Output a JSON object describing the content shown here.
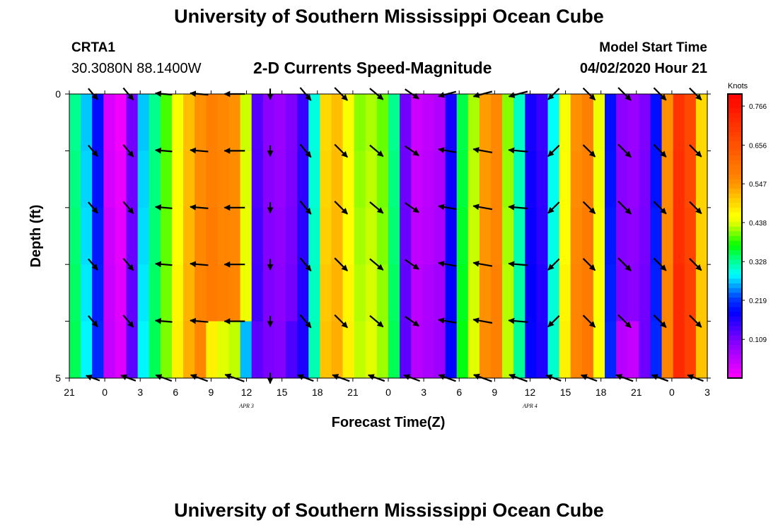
{
  "header": {
    "title": "University of Southern Mississippi Ocean Cube",
    "station_id": "CRTA1",
    "station_coords": "30.3080N 88.1400W",
    "subtitle": "2-D Currents Speed-Magnitude",
    "start_label": "Model Start Time",
    "start_value": "04/02/2020 Hour 21"
  },
  "footer": {
    "title": "University of Southern Mississippi Ocean Cube"
  },
  "chart_data": {
    "type": "heatmap",
    "xlabel": "Forecast Time(Z)",
    "ylabel": "Depth (ft)",
    "x_tick_labels": [
      "21",
      "0",
      "3",
      "6",
      "9",
      "12",
      "15",
      "18",
      "21",
      "0",
      "3",
      "6",
      "9",
      "12",
      "15",
      "18",
      "21",
      "0",
      "3"
    ],
    "date_labels": [
      {
        "label": "APR 3",
        "tick_index": 5
      },
      {
        "label": "APR 4",
        "tick_index": 13
      }
    ],
    "y_tick_labels": [
      "0",
      "5"
    ],
    "ylim": [
      0,
      5
    ],
    "colorbar": {
      "unit": "Knots",
      "tick_labels": [
        "0.766",
        "0.656",
        "0.547",
        "0.438",
        "0.328",
        "0.219",
        "0.109"
      ],
      "tick_values": [
        0.766,
        0.656,
        0.547,
        0.438,
        0.328,
        0.219,
        0.109
      ],
      "range": [
        0.0,
        0.8
      ]
    },
    "forecast_hours": 54,
    "depth_layers": 5,
    "speed_columns": [
      0.34,
      0.28,
      0.2,
      0.04,
      0.02,
      0.12,
      0.28,
      0.34,
      0.4,
      0.46,
      0.52,
      0.56,
      0.58,
      0.57,
      0.56,
      0.44,
      0.14,
      0.1,
      0.09,
      0.11,
      0.16,
      0.31,
      0.5,
      0.52,
      0.46,
      0.42,
      0.43,
      0.41,
      0.34,
      0.12,
      0.05,
      0.06,
      0.07,
      0.18,
      0.36,
      0.43,
      0.55,
      0.57,
      0.42,
      0.32,
      0.18,
      0.16,
      0.3,
      0.46,
      0.56,
      0.58,
      0.45,
      0.2,
      0.1,
      0.09,
      0.11,
      0.2,
      0.56,
      0.72,
      0.68,
      0.5
    ],
    "bottom_layer_offsets": [
      0.0,
      0.0,
      0.0,
      0.0,
      0.0,
      0.0,
      0.0,
      0.0,
      0.0,
      0.0,
      0.0,
      0.0,
      -0.12,
      -0.14,
      -0.14,
      -0.18,
      -0.02,
      0.0,
      0.0,
      0.02,
      0.0,
      0.0,
      0.0,
      0.0,
      0.0,
      0.0,
      0.0,
      0.0,
      0.0,
      0.0,
      0.0,
      0.0,
      0.0,
      0.0,
      0.0,
      0.0,
      0.0,
      0.0,
      0.0,
      0.0,
      0.0,
      0.0,
      0.0,
      0.0,
      0.0,
      0.0,
      0.0,
      0.0,
      -0.05,
      -0.05,
      0.0,
      0.0,
      0.0,
      0.0,
      0.0,
      0.0
    ],
    "vectors": {
      "hours": [
        2,
        5,
        8,
        11,
        14,
        17,
        20,
        23,
        26,
        29,
        32,
        35,
        38,
        41,
        44,
        47,
        50,
        53
      ],
      "directions_deg": [
        140,
        140,
        275,
        275,
        270,
        180,
        140,
        135,
        130,
        125,
        280,
        280,
        275,
        225,
        135,
        135,
        135,
        135
      ],
      "lengths": [
        0.6,
        0.65,
        0.7,
        0.75,
        0.85,
        0.45,
        0.7,
        0.75,
        0.72,
        0.7,
        0.75,
        0.8,
        0.8,
        0.65,
        0.7,
        0.75,
        0.72,
        0.7
      ],
      "top_row_directions_deg": [
        140,
        140,
        275,
        275,
        270,
        180,
        140,
        135,
        130,
        125,
        255,
        255,
        255,
        225,
        135,
        135,
        135,
        135
      ],
      "bottom_row_directions_deg": [
        290,
        290,
        290,
        290,
        290,
        180,
        290,
        290,
        290,
        290,
        290,
        290,
        290,
        290,
        290,
        290,
        290,
        290
      ]
    }
  }
}
